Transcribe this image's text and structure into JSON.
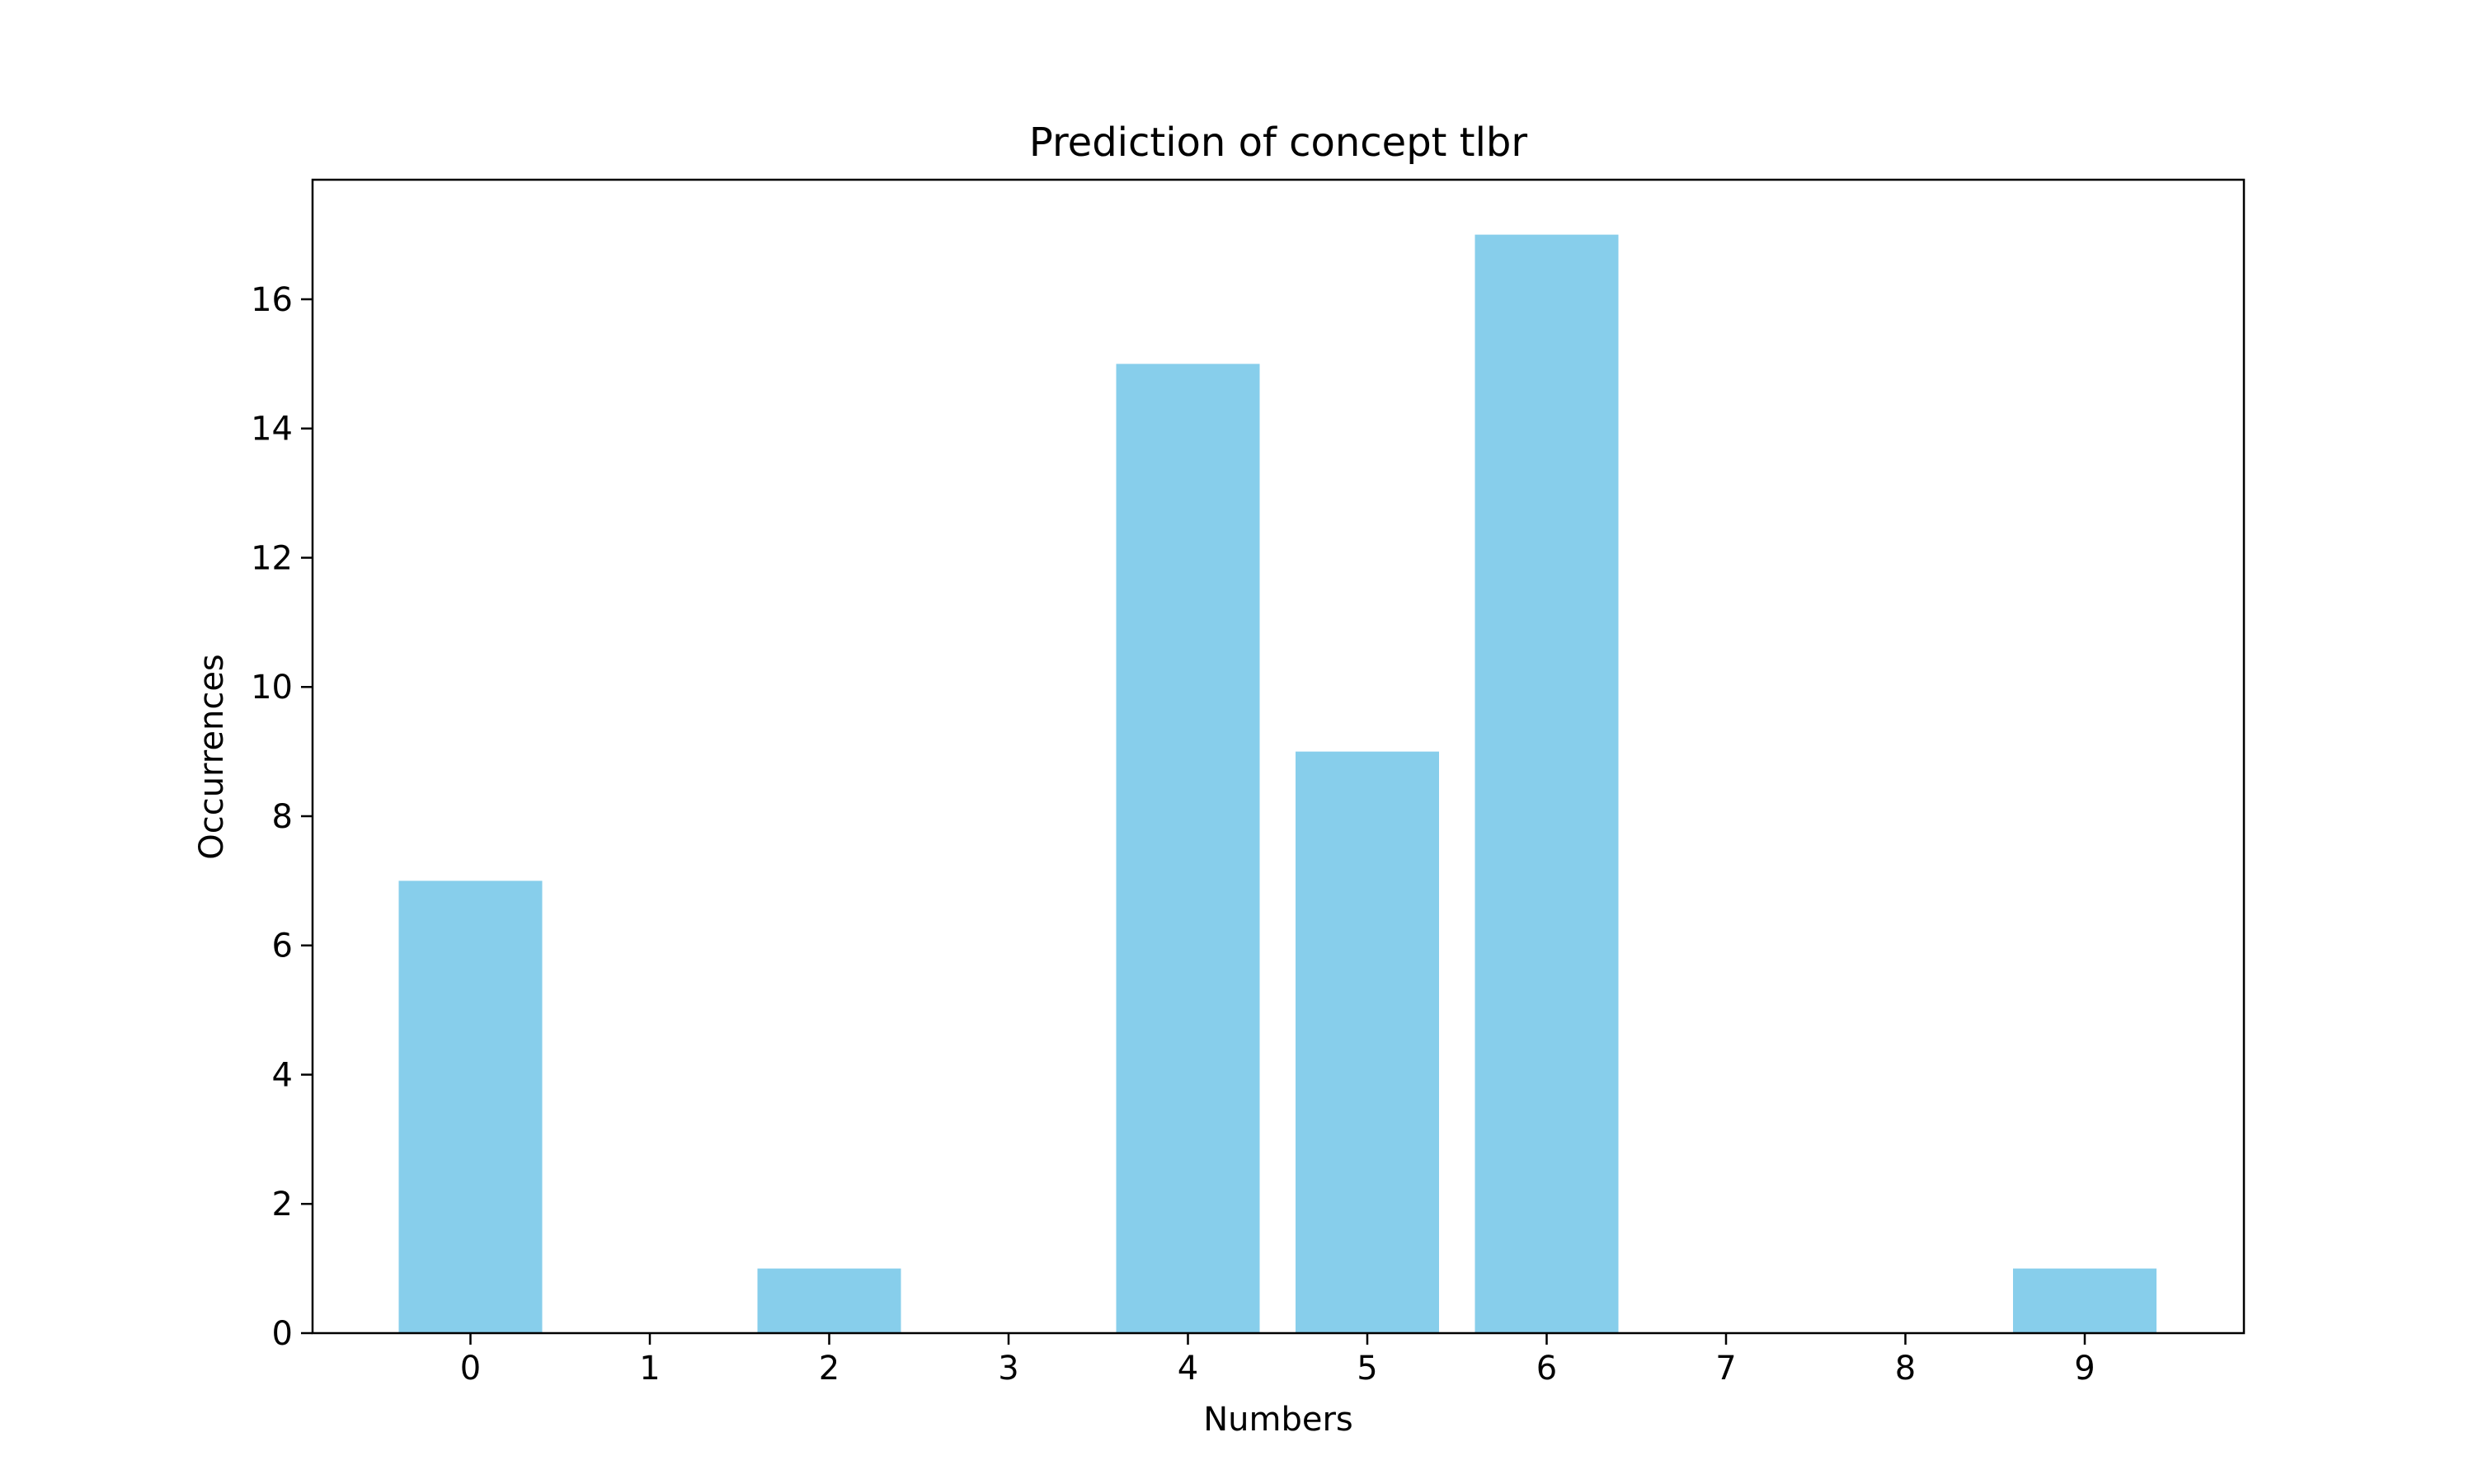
{
  "chart_data": {
    "type": "bar",
    "title": "Prediction of concept tlbr",
    "xlabel": "Numbers",
    "ylabel": "Occurrences",
    "categories": [
      "0",
      "1",
      "2",
      "3",
      "4",
      "5",
      "6",
      "7",
      "8",
      "9"
    ],
    "values": [
      7,
      0,
      1,
      0,
      15,
      9,
      17,
      0,
      0,
      1
    ],
    "ylim": [
      0,
      17.85
    ],
    "yticks": [
      0,
      2,
      4,
      6,
      8,
      10,
      12,
      14,
      16
    ],
    "grid": false,
    "legend": "none",
    "colors": {
      "bar": "#87CEEB",
      "axis": "#000000",
      "background": "#ffffff"
    }
  }
}
